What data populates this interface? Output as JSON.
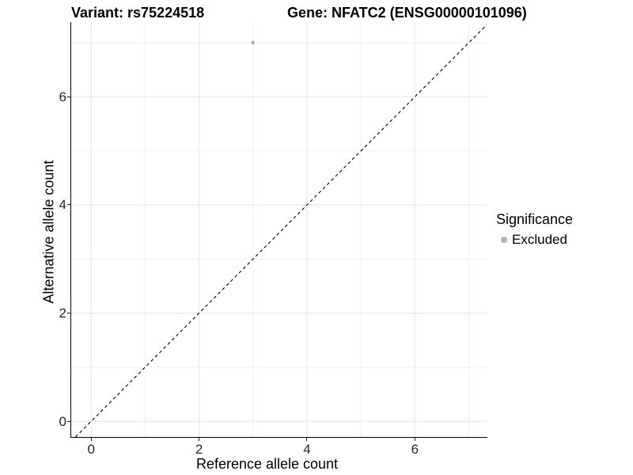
{
  "chart_data": {
    "type": "scatter",
    "title_variant": "Variant: rs75224518",
    "title_gene": "Gene: NFATC2 (ENSG00000101096)",
    "xlabel": "Reference allele count",
    "ylabel": "Alternative allele count",
    "x_ticks": [
      0,
      2,
      4,
      6
    ],
    "y_ticks": [
      0,
      2,
      4,
      6
    ],
    "x_minor_ticks": [
      1,
      3,
      5,
      7
    ],
    "y_minor_ticks": [
      1,
      3,
      5,
      7
    ],
    "xlim": [
      -0.37,
      7.33
    ],
    "ylim": [
      -0.29,
      7.38
    ],
    "grid": "on",
    "points": [
      {
        "x": 3,
        "y": 7,
        "series": "Excluded"
      }
    ],
    "reference_line": {
      "type": "identity y=x",
      "style": "dashed",
      "color": "#000000"
    },
    "legend": {
      "title": "Significance",
      "position": "right",
      "items": [
        {
          "label": "Excluded",
          "color": "#b3b3b3"
        }
      ]
    },
    "colors": {
      "background": "#ffffff",
      "grid_major": "#e5e5e5",
      "grid_minor": "#efefef",
      "axis_line": "#000000",
      "tick_text": "#262626",
      "point_excluded": "#b3b3b3"
    }
  }
}
